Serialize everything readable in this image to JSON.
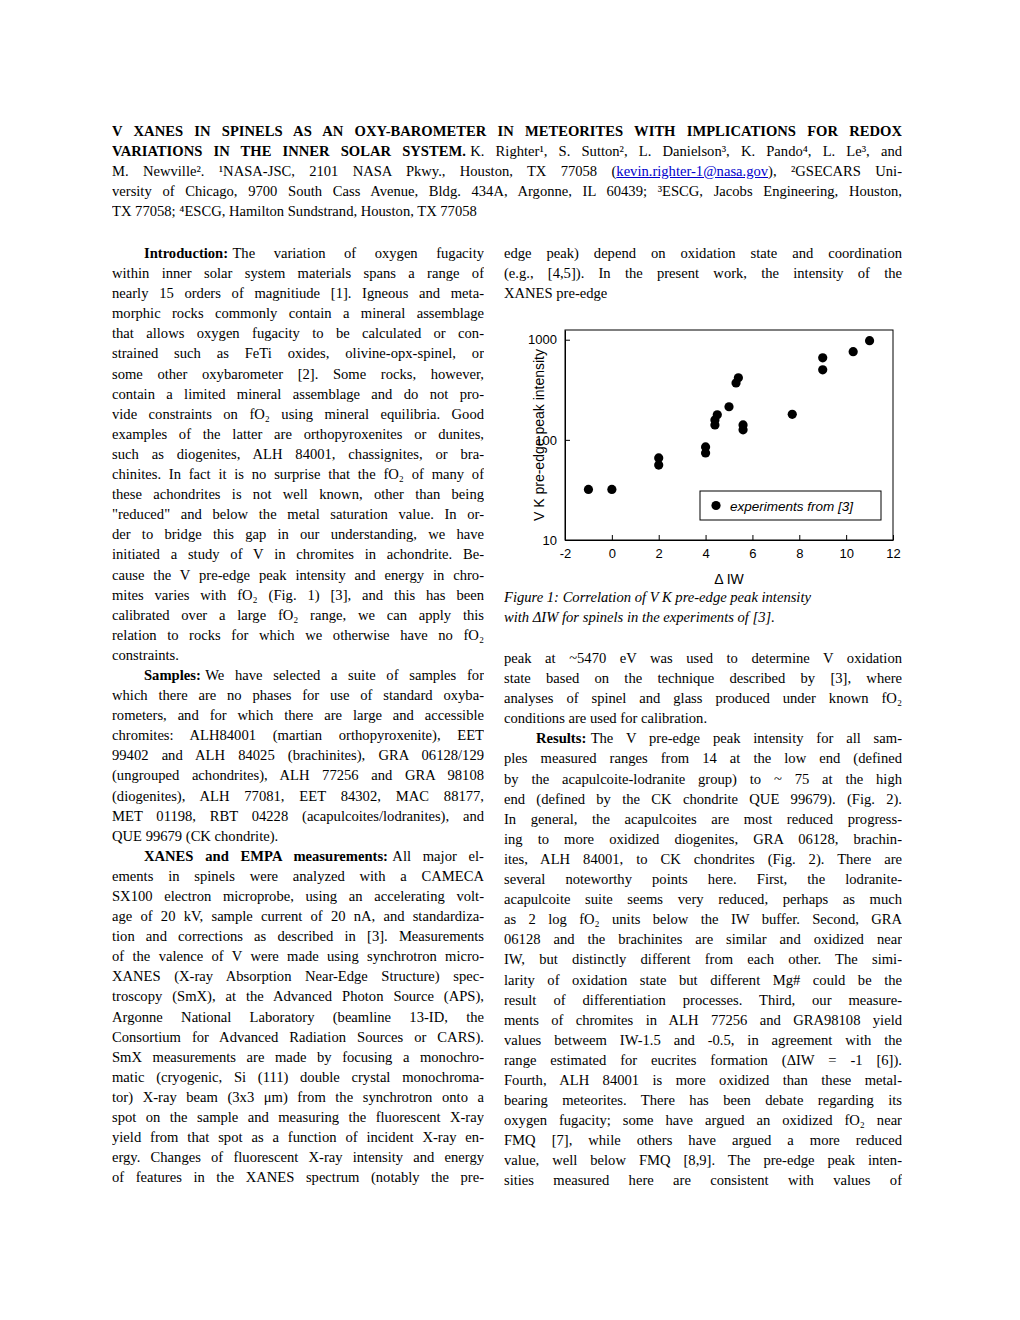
{
  "header": {
    "title_lines": [
      "V XANES IN SPINELS AS AN OXY-BAROMETER IN METEORITES WITH IMPLICATIONS FOR REDOX",
      "VARIATIONS IN THE INNER SOLAR SYSTEM."
    ],
    "author_lines": [
      "K. Righter¹, S. Sutton², L. Danielson³, K. Pando⁴, L. Le³, and",
      "M. Newville². ¹NASA-JSC, 2101 NASA Pkwy., Houston, TX 77058 (",
      "), ²GSECARS Uni-",
      "versity of Chicago, 9700 South Cass Avenue, Bldg. 434A, Argonne, IL 60439; ³ESCG, Jacobs Engineering, Houston,",
      "TX 77058; ⁴ESCG, Hamilton Sundstrand, Houston, TX 77058"
    ],
    "email": "kevin.righter-1@nasa.gov"
  },
  "body": {
    "left": [
      {
        "heading": "Introduction:",
        "lines": [
          "The variation of oxygen fugacity",
          "within inner solar system materials spans a range of",
          "nearly 15 orders of magnitiude [1].  Igneous and meta-",
          "morphic rocks commonly contain a mineral assemblage",
          "that allows oxygen fugacity to be calculated or con-",
          "strained such as FeTi oxides, olivine-opx-spinel, or",
          "some other oxybarometer [2].  Some rocks, however,",
          "contain a limited mineral assemblage and do not pro-",
          "vide constraints on fO₂ using mineral equilibria.  Good",
          "examples of the latter are orthopyroxenites or dunites,",
          "such as diogenites, ALH 84001, chassignites, or bra-",
          "chinites.  In fact it is no surprise that the fO₂ of many of",
          "these achondrites is not well known, other than being",
          "\"reduced\" and below the metal saturation value.  In or-",
          "der to bridge this gap in our understanding, we have",
          "initiated a study of V in chromites in achondrite.  Be-",
          "cause the V pre-edge peak intensity and energy in chro-",
          "mites varies with fO₂ (Fig. 1) [3], and this has been",
          "calibrated over a large fO₂ range, we can apply this",
          "relation to rocks for which we otherwise have no fO₂",
          "constraints."
        ]
      },
      {
        "heading": "Samples:",
        "lines": [
          "We have selected a suite of samples for",
          "which there are no phases for use of standard oxyba-",
          "rometers, and for which there are large and accessible",
          "chromites: ALH84001 (martian orthopyroxenite), EET",
          "99402 and ALH 84025 (brachinites), GRA 06128/129",
          "(ungrouped achondrites), ALH 77256 and GRA 98108",
          "(diogenites), ALH 77081, EET 84302, MAC 88177,",
          "MET 01198, RBT 04228 (acapulcoites/lodranites), and",
          "QUE 99679 (CK chondrite)."
        ]
      },
      {
        "heading": "XANES and EMPA measurements:",
        "lines": [
          "All major el-",
          "ements in spinels were analyzed with a CAMECA",
          "SX100 electron microprobe, using an accelerating volt-",
          "age of 20 kV, sample current of 20 nA, and standardiza-",
          "tion and corrections as described in [3].  Measurements",
          "of the valence of V were made using synchrotron micro-",
          "XANES (X-ray Absorption Near-Edge Structure) spec-",
          "troscopy (SmX), at the Advanced Photon Source (APS),",
          "Argonne National Laboratory (beamline 13-ID, the",
          "Consortium for Advanced Radiation Sources or CARS).",
          "SmX measurements are made by focusing a monochro-",
          "matic (cryogenic, Si (111) double crystal monochroma-",
          "tor) X-ray beam (3x3 μm) from the synchrotron onto a",
          "spot on the sample and measuring the fluorescent X-ray",
          "yield from that spot as a function of incident X-ray en-",
          "ergy.  Changes of fluorescent X-ray intensity and energy",
          "of features in the XANES spectrum (notably the pre-"
        ]
      }
    ],
    "right_top": [
      {
        "lines": [
          "edge peak) depend on oxidation state and coordination",
          "(e.g., [4,5]).  In the present work, the intensity of the",
          "XANES pre-edge"
        ]
      }
    ],
    "right_bottom": [
      {
        "lines": [
          "peak at ~5470 eV was used to determine V oxidation",
          "state based on the technique described by [3], where",
          "analyses of spinel and glass produced under known fO₂",
          "conditions are used for calibration."
        ]
      },
      {
        "heading": "Results:",
        "lines": [
          "The V pre-edge peak intensity for all sam-",
          "ples measured ranges from 14 at the low end (defined",
          "by the acapulcoite-lodranite group) to ~ 75 at the high",
          "end (defined by the CK chondrite QUE 99679). (Fig. 2).",
          "In general, the acapulcoites are most reduced progress-",
          "ing to more oxidized diogenites, GRA 06128, brachin-",
          "ites, ALH 84001, to CK chondrites (Fig. 2).  There are",
          "several noteworthy points here.  First, the lodranite-",
          "acapulcoite suite seems very reduced, perhaps as much",
          "as 2 log fO₂ units below the IW buffer.  Second, GRA",
          "06128 and the brachinites are similar and oxidized near",
          "IW, but distinctly different from each other.  The simi-",
          "larity of oxidation state but different Mg# could be the",
          "result of differentiation processes.  Third, our measure-",
          "ments of chromites in ALH 77256 and GRA98108 yield",
          "values betweem IW-1.5 and -0.5, in agreement with the",
          "range estimated for eucrites formation (ΔIW = -1 [6]).",
          "Fourth, ALH 84001 is more oxidized than these metal-",
          "bearing meteorites.  There has been debate regarding its",
          "oxygen fugacity; some have argued an oxidized fO₂ near",
          "FMQ [7], while others have argued a more reduced",
          "value, well below FMQ [8,9]. The pre-edge peak inten-",
          "sities measured here are consistent with values of"
        ]
      }
    ]
  },
  "figure": {
    "caption_lines": [
      "Figure 1: Correlation of V K pre-edge peak intensity",
      "with ΔIW for spinels in the experiments of [3]."
    ]
  },
  "chart_data": {
    "type": "scatter",
    "x_label": "Δ IW",
    "y_label": "V K pre-edge peak intensity",
    "x": [
      -1,
      0,
      2,
      2,
      4,
      4,
      4.4,
      4.4,
      4.5,
      5,
      5.3,
      5.4,
      5.6,
      5.6,
      7.7,
      9,
      9,
      10.3,
      11
    ],
    "series": [
      {
        "name": "experiments from [3]",
        "color": "#000000",
        "marker": "circle",
        "values": [
          32,
          32,
          56,
          66,
          74,
          85,
          141,
          158,
          178,
          214,
          370,
          417,
          126,
          141,
          180,
          500,
          660,
          760,
          977
        ]
      }
    ],
    "xlim": [
      -2,
      12
    ],
    "xticks": [
      -2,
      0,
      2,
      4,
      6,
      8,
      10,
      12
    ],
    "ylim": [
      10,
      1250
    ],
    "yticks": [
      10,
      100,
      1000
    ],
    "log": "y",
    "grid": false,
    "legend": "lower right"
  }
}
